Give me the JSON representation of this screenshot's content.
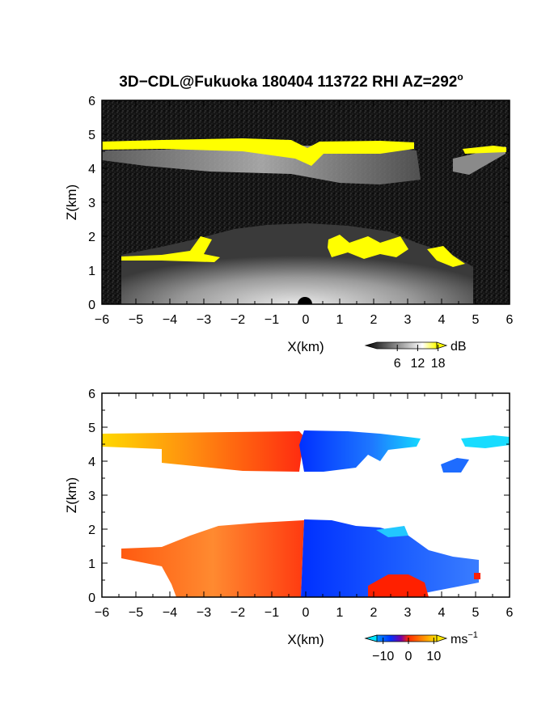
{
  "figure": {
    "title": "3D−CDL@Fukuoka 180404 113722 RHI AZ=292",
    "title_superscript": "o"
  },
  "chart_data": [
    {
      "type": "heatmap",
      "quantity": "reflectivity",
      "xlabel": "X(km)",
      "ylabel": "Z(km)",
      "xlim": [
        -6,
        6
      ],
      "ylim": [
        0,
        6
      ],
      "xticks": [
        "−6",
        "−5",
        "−4",
        "−3",
        "−2",
        "−1",
        "0",
        "1",
        "2",
        "3",
        "4",
        "5",
        "6"
      ],
      "yticks": [
        "0",
        "1",
        "2",
        "3",
        "4",
        "5",
        "6"
      ],
      "colorbar": {
        "unit": "dB",
        "ticks": [
          "6",
          "12",
          "18"
        ],
        "range": [
          0,
          20
        ],
        "colors": [
          "#000000",
          "#ffffff",
          "#ffff00"
        ]
      },
      "features": [
        {
          "label": "upper cloud layer",
          "x": [
            -6,
            6
          ],
          "z": [
            3.8,
            4.8
          ]
        },
        {
          "label": "lower cloud layer",
          "x": [
            -5.5,
            5
          ],
          "z": [
            0,
            2.2
          ]
        }
      ]
    },
    {
      "type": "heatmap",
      "quantity": "doppler velocity",
      "xlabel": "X(km)",
      "ylabel": "Z(km)",
      "xlim": [
        -6,
        6
      ],
      "ylim": [
        0,
        6
      ],
      "xticks": [
        "−6",
        "−5",
        "−4",
        "−3",
        "−2",
        "−1",
        "0",
        "1",
        "2",
        "3",
        "4",
        "5",
        "6"
      ],
      "yticks": [
        "0",
        "1",
        "2",
        "3",
        "4",
        "5",
        "6"
      ],
      "colorbar": {
        "unit": "ms",
        "unit_superscript": "−1",
        "ticks": [
          "−10",
          "0",
          "10"
        ],
        "range": [
          -15,
          15
        ],
        "colors": [
          "#00e5ff",
          "#0033ff",
          "#ff2a00",
          "#ffe600"
        ]
      },
      "features": [
        {
          "label": "upper layer, negative x",
          "x": [
            -6,
            -0.2
          ],
          "z": [
            3.8,
            4.8
          ],
          "velocity_ms": [
            5,
            14
          ]
        },
        {
          "label": "upper layer, positive x",
          "x": [
            -0.2,
            6
          ],
          "z": [
            3.8,
            4.8
          ],
          "velocity_ms": [
            -14,
            -6
          ]
        },
        {
          "label": "lower layer, negative x",
          "x": [
            -5.7,
            -0.2
          ],
          "z": [
            0,
            2.2
          ],
          "velocity_ms": [
            3,
            10
          ]
        },
        {
          "label": "lower layer, positive x",
          "x": [
            -0.2,
            5
          ],
          "z": [
            0,
            2.2
          ],
          "velocity_ms": [
            -12,
            -6
          ]
        }
      ]
    }
  ]
}
